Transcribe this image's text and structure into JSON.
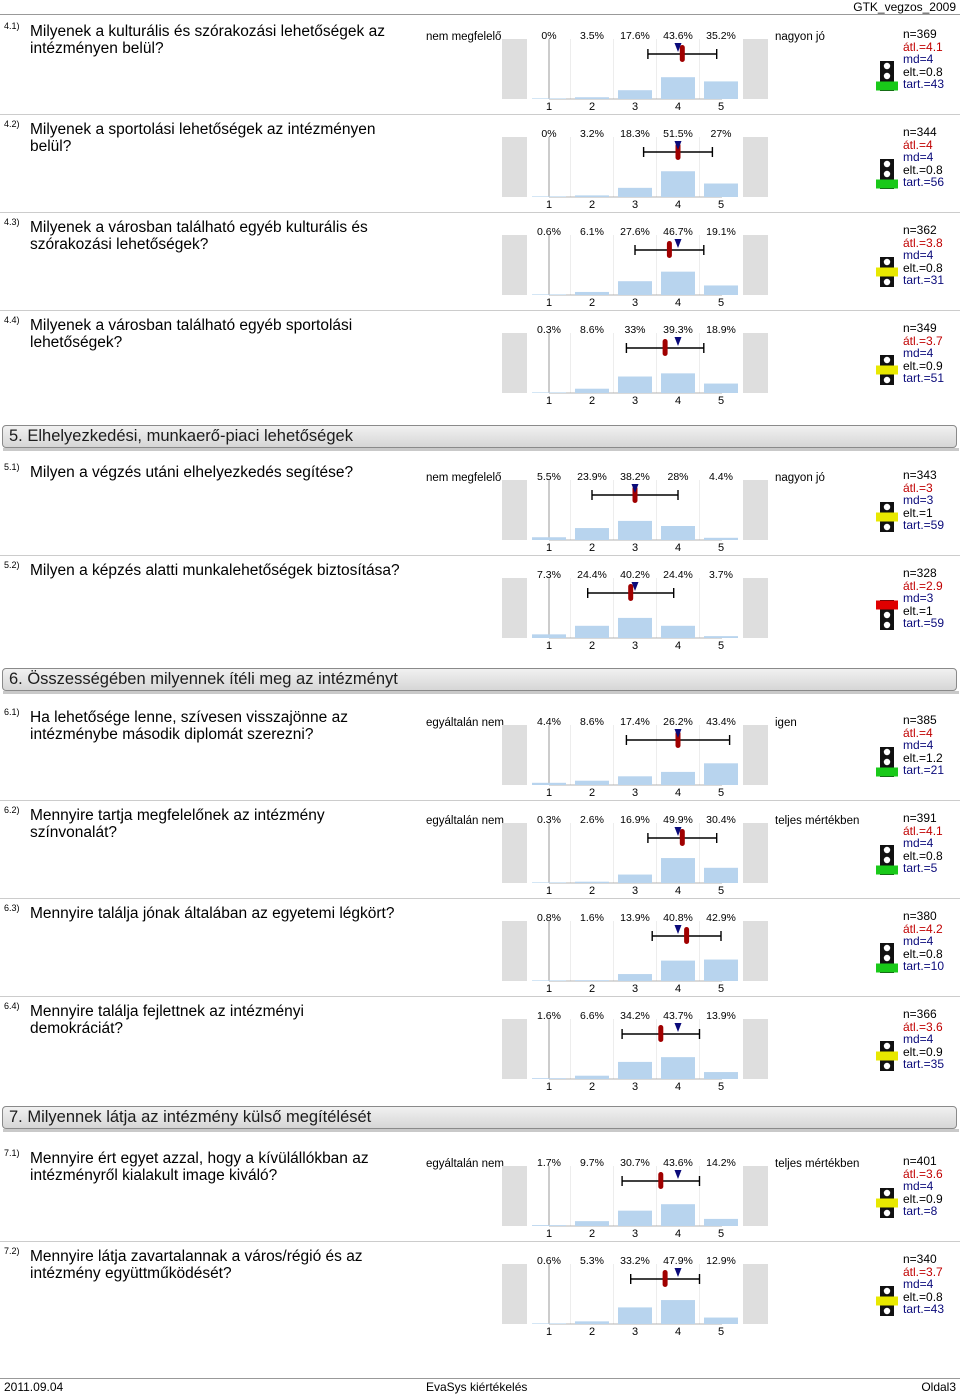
{
  "header": {
    "doc_id": "GTK_vegzos_2009"
  },
  "footer": {
    "date": "2011.09.04",
    "center": "EvaSys kiértékelés",
    "page": "Oldal3"
  },
  "colors": {
    "bar": "#b8d4ee",
    "bg_band": "#dedede",
    "mean": "#a00000",
    "median": "#0a0a7a",
    "light_green": "#19c919",
    "light_yellow": "#e8e800",
    "light_red": "#e00000",
    "light_off": "#ffffff"
  },
  "scale_ticks": [
    "1",
    "2",
    "3",
    "4",
    "5"
  ],
  "items": [
    {
      "id": "4.1)",
      "question": "Milyenek a kulturális és szórakozási lehetőségek az intézményen belül?",
      "left_label": "nem megfelelő",
      "right_label": "nagyon jó",
      "pct_labels": [
        "0%",
        "3.5%",
        "17.6%",
        "43.6%",
        "35.2%"
      ],
      "chart_data": {
        "type": "bar",
        "categories": [
          "1",
          "2",
          "3",
          "4",
          "5"
        ],
        "values": [
          0,
          3.5,
          17.6,
          43.6,
          35.2
        ],
        "mean": 4.1,
        "median": 4,
        "deviation": 0.8
      },
      "stats": {
        "n": "n=369",
        "avg": "átl.=4.1",
        "md": "md=4",
        "dev": "elt.=0.8",
        "abst": "tart.=43"
      },
      "light": "green"
    },
    {
      "id": "4.2)",
      "question": "Milyenek a sportolási lehetőségek az intézményen belül?",
      "left_label": "",
      "right_label": "",
      "pct_labels": [
        "0%",
        "3.2%",
        "18.3%",
        "51.5%",
        "27%"
      ],
      "chart_data": {
        "type": "bar",
        "categories": [
          "1",
          "2",
          "3",
          "4",
          "5"
        ],
        "values": [
          0,
          3.2,
          18.3,
          51.5,
          27
        ],
        "mean": 4,
        "median": 4,
        "deviation": 0.8
      },
      "stats": {
        "n": "n=344",
        "avg": "átl.=4",
        "md": "md=4",
        "dev": "elt.=0.8",
        "abst": "tart.=56"
      },
      "light": "green"
    },
    {
      "id": "4.3)",
      "question": "Milyenek a városban található egyéb kulturális és szórakozási lehetőségek?",
      "left_label": "",
      "right_label": "",
      "pct_labels": [
        "0.6%",
        "6.1%",
        "27.6%",
        "46.7%",
        "19.1%"
      ],
      "chart_data": {
        "type": "bar",
        "categories": [
          "1",
          "2",
          "3",
          "4",
          "5"
        ],
        "values": [
          0.6,
          6.1,
          27.6,
          46.7,
          19.1
        ],
        "mean": 3.8,
        "median": 4,
        "deviation": 0.8
      },
      "stats": {
        "n": "n=362",
        "avg": "átl.=3.8",
        "md": "md=4",
        "dev": "elt.=0.8",
        "abst": "tart.=31"
      },
      "light": "yellow"
    },
    {
      "id": "4.4)",
      "question": "Milyenek a városban található egyéb sportolási lehetőségek?",
      "left_label": "",
      "right_label": "",
      "pct_labels": [
        "0.3%",
        "8.6%",
        "33%",
        "39.3%",
        "18.9%"
      ],
      "chart_data": {
        "type": "bar",
        "categories": [
          "1",
          "2",
          "3",
          "4",
          "5"
        ],
        "values": [
          0.3,
          8.6,
          33,
          39.3,
          18.9
        ],
        "mean": 3.7,
        "median": 4,
        "deviation": 0.9
      },
      "stats": {
        "n": "n=349",
        "avg": "átl.=3.7",
        "md": "md=4",
        "dev": "elt.=0.9",
        "abst": "tart.=51"
      },
      "light": "yellow"
    },
    {
      "id": "5.1)",
      "question": "Milyen a végzés utáni elhelyezkedés segítése?",
      "left_label": "nem megfelelő",
      "right_label": "nagyon jó",
      "pct_labels": [
        "5.5%",
        "23.9%",
        "38.2%",
        "28%",
        "4.4%"
      ],
      "chart_data": {
        "type": "bar",
        "categories": [
          "1",
          "2",
          "3",
          "4",
          "5"
        ],
        "values": [
          5.5,
          23.9,
          38.2,
          28,
          4.4
        ],
        "mean": 3,
        "median": 3,
        "deviation": 1
      },
      "stats": {
        "n": "n=343",
        "avg": "átl.=3",
        "md": "md=3",
        "dev": "elt.=1",
        "abst": "tart.=59"
      },
      "light": "yellow"
    },
    {
      "id": "5.2)",
      "question": "Milyen a képzés alatti munkalehetőségek biztosítása?",
      "left_label": "",
      "right_label": "",
      "pct_labels": [
        "7.3%",
        "24.4%",
        "40.2%",
        "24.4%",
        "3.7%"
      ],
      "chart_data": {
        "type": "bar",
        "categories": [
          "1",
          "2",
          "3",
          "4",
          "5"
        ],
        "values": [
          7.3,
          24.4,
          40.2,
          24.4,
          3.7
        ],
        "mean": 2.9,
        "median": 3,
        "deviation": 1
      },
      "stats": {
        "n": "n=328",
        "avg": "átl.=2.9",
        "md": "md=3",
        "dev": "elt.=1",
        "abst": "tart.=59"
      },
      "light": "red"
    },
    {
      "id": "6.1)",
      "question": "Ha lehetősége lenne, szívesen visszajönne az intézménybe második diplomát szerezni?",
      "left_label": "egyáltalán nem",
      "right_label": "igen",
      "pct_labels": [
        "4.4%",
        "8.6%",
        "17.4%",
        "26.2%",
        "43.4%"
      ],
      "chart_data": {
        "type": "bar",
        "categories": [
          "1",
          "2",
          "3",
          "4",
          "5"
        ],
        "values": [
          4.4,
          8.6,
          17.4,
          26.2,
          43.4
        ],
        "mean": 4,
        "median": 4,
        "deviation": 1.2
      },
      "stats": {
        "n": "n=385",
        "avg": "átl.=4",
        "md": "md=4",
        "dev": "elt.=1.2",
        "abst": "tart.=21"
      },
      "light": "green"
    },
    {
      "id": "6.2)",
      "question": "Mennyire tartja megfelelőnek az intézmény színvonalát?",
      "left_label": "egyáltalán nem",
      "right_label": "teljes mértékben",
      "pct_labels": [
        "0.3%",
        "2.6%",
        "16.9%",
        "49.9%",
        "30.4%"
      ],
      "chart_data": {
        "type": "bar",
        "categories": [
          "1",
          "2",
          "3",
          "4",
          "5"
        ],
        "values": [
          0.3,
          2.6,
          16.9,
          49.9,
          30.4
        ],
        "mean": 4.1,
        "median": 4,
        "deviation": 0.8
      },
      "stats": {
        "n": "n=391",
        "avg": "átl.=4.1",
        "md": "md=4",
        "dev": "elt.=0.8",
        "abst": "tart.=5"
      },
      "light": "green"
    },
    {
      "id": "6.3)",
      "question": "Mennyire találja jónak általában az egyetemi légkört?",
      "left_label": "",
      "right_label": "",
      "pct_labels": [
        "0.8%",
        "1.6%",
        "13.9%",
        "40.8%",
        "42.9%"
      ],
      "chart_data": {
        "type": "bar",
        "categories": [
          "1",
          "2",
          "3",
          "4",
          "5"
        ],
        "values": [
          0.8,
          1.6,
          13.9,
          40.8,
          42.9
        ],
        "mean": 4.2,
        "median": 4,
        "deviation": 0.8
      },
      "stats": {
        "n": "n=380",
        "avg": "átl.=4.2",
        "md": "md=4",
        "dev": "elt.=0.8",
        "abst": "tart.=10"
      },
      "light": "green"
    },
    {
      "id": "6.4)",
      "question": "Mennyire találja fejlettnek az intézményi demokráciát?",
      "left_label": "",
      "right_label": "",
      "pct_labels": [
        "1.6%",
        "6.6%",
        "34.2%",
        "43.7%",
        "13.9%"
      ],
      "chart_data": {
        "type": "bar",
        "categories": [
          "1",
          "2",
          "3",
          "4",
          "5"
        ],
        "values": [
          1.6,
          6.6,
          34.2,
          43.7,
          13.9
        ],
        "mean": 3.6,
        "median": 4,
        "deviation": 0.9
      },
      "stats": {
        "n": "n=366",
        "avg": "átl.=3.6",
        "md": "md=4",
        "dev": "elt.=0.9",
        "abst": "tart.=35"
      },
      "light": "yellow"
    },
    {
      "id": "7.1)",
      "question": "Mennyire ért egyet azzal, hogy a kívülállókban az intézményről kialakult image kiváló?",
      "left_label": "egyáltalán nem",
      "right_label": "teljes mértékben",
      "pct_labels": [
        "1.7%",
        "9.7%",
        "30.7%",
        "43.6%",
        "14.2%"
      ],
      "chart_data": {
        "type": "bar",
        "categories": [
          "1",
          "2",
          "3",
          "4",
          "5"
        ],
        "values": [
          1.7,
          9.7,
          30.7,
          43.6,
          14.2
        ],
        "mean": 3.6,
        "median": 4,
        "deviation": 0.9
      },
      "stats": {
        "n": "n=401",
        "avg": "átl.=3.6",
        "md": "md=4",
        "dev": "elt.=0.9",
        "abst": "tart.=8"
      },
      "light": "yellow"
    },
    {
      "id": "7.2)",
      "question": "Mennyire látja zavartalannak a város/régió és az intézmény együttműködését?",
      "left_label": "",
      "right_label": "",
      "pct_labels": [
        "0.6%",
        "5.3%",
        "33.2%",
        "47.9%",
        "12.9%"
      ],
      "chart_data": {
        "type": "bar",
        "categories": [
          "1",
          "2",
          "3",
          "4",
          "5"
        ],
        "values": [
          0.6,
          5.3,
          33.2,
          47.9,
          12.9
        ],
        "mean": 3.7,
        "median": 4,
        "deviation": 0.8
      },
      "stats": {
        "n": "n=340",
        "avg": "átl.=3.7",
        "md": "md=4",
        "dev": "elt.=0.8",
        "abst": "tart.=43"
      },
      "light": "yellow"
    }
  ],
  "sections": [
    {
      "title": "5. Elhelyezkedési, munkaerő-piaci lehetőségek"
    },
    {
      "title": "6. Összességében milyennek ítéli meg az intézményt"
    },
    {
      "title": "7. Milyennek látja az intézmény külső megítélését"
    }
  ]
}
